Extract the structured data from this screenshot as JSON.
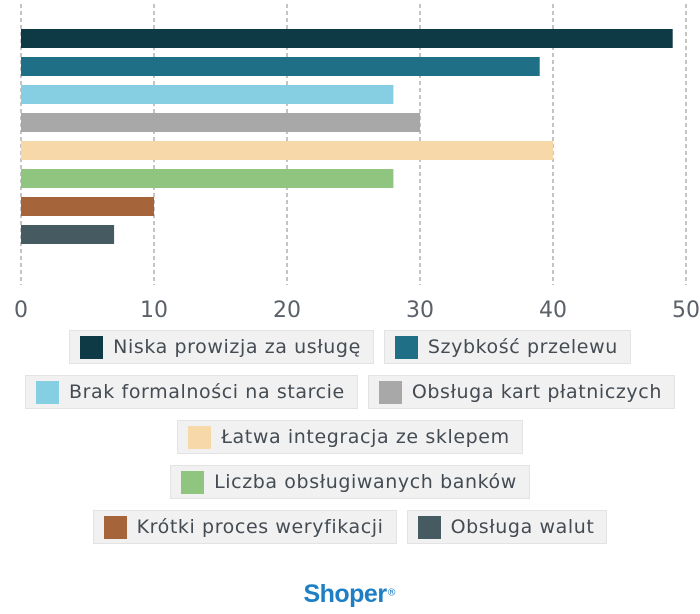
{
  "chart_data": {
    "type": "bar",
    "orientation": "horizontal",
    "title": "",
    "xlabel": "",
    "ylabel": "",
    "xlim": [
      0,
      50
    ],
    "ticks": [
      "0",
      "10",
      "20",
      "30",
      "40",
      "50"
    ],
    "tick_values": [
      0,
      10,
      20,
      30,
      40,
      50
    ],
    "grid": true,
    "legend_placement": "bottom",
    "categories": [
      "Niska prowizja za usługę",
      "Szybkość przelewu",
      "Brak formalności na starcie",
      "Obsługa kart płatniczych",
      "Łatwa integracja ze sklepem",
      "Liczba obsługiwanych banków",
      "Krótki proces weryfikacji",
      "Obsługa walut"
    ],
    "values": [
      49,
      39,
      28,
      30,
      40,
      28,
      10,
      7
    ],
    "colors": [
      "#0e3a46",
      "#1f6f86",
      "#86cfe3",
      "#a8a8a8",
      "#f7d8a8",
      "#8fc57e",
      "#a56439",
      "#465a61"
    ]
  },
  "legend": {
    "rows": [
      [
        0,
        1
      ],
      [
        2,
        3
      ],
      [
        4
      ],
      [
        5
      ],
      [
        6,
        7
      ]
    ]
  },
  "logo": {
    "text": "Shoper",
    "mark": "®"
  }
}
